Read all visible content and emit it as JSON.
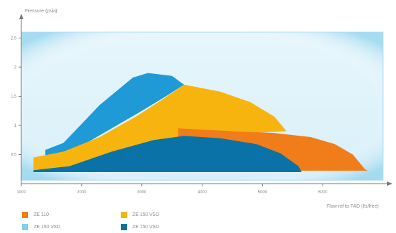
{
  "chart_data": {
    "type": "area",
    "title": "",
    "ylabel": "Pressure (psia)",
    "xlabel": "Flow ref to FAD (l/s/free)",
    "xlim": [
      1000,
      7000
    ],
    "ylim": [
      0,
      2.6
    ],
    "xticks": [
      "1000",
      "2000",
      "3000",
      "4000",
      "5000",
      "6000"
    ],
    "yticks": [
      "0.5",
      "1",
      "1.5",
      "2",
      "2.5"
    ],
    "series": [
      {
        "name": "ZE 150 VSD",
        "color": "#1f9ad6",
        "polygon": [
          [
            1400,
            0.58
          ],
          [
            1700,
            0.7
          ],
          [
            2300,
            1.35
          ],
          [
            2850,
            1.82
          ],
          [
            3100,
            1.9
          ],
          [
            3500,
            1.85
          ],
          [
            3700,
            1.7
          ],
          [
            3400,
            1.5
          ],
          [
            3000,
            1.25
          ],
          [
            2500,
            0.95
          ],
          [
            2000,
            0.65
          ],
          [
            1550,
            0.45
          ],
          [
            1400,
            0.42
          ]
        ]
      },
      {
        "name": "ZE 150 VSD",
        "color": "#f7b40f",
        "polygon": [
          [
            1200,
            0.45
          ],
          [
            1700,
            0.55
          ],
          [
            2300,
            0.8
          ],
          [
            2900,
            1.15
          ],
          [
            3350,
            1.45
          ],
          [
            3700,
            1.7
          ],
          [
            4300,
            1.58
          ],
          [
            4800,
            1.4
          ],
          [
            5200,
            1.15
          ],
          [
            5400,
            0.9
          ],
          [
            4400,
            0.85
          ],
          [
            3600,
            0.8
          ],
          [
            2900,
            0.55
          ],
          [
            2200,
            0.38
          ],
          [
            1600,
            0.25
          ],
          [
            1200,
            0.22
          ]
        ]
      },
      {
        "name": "ZE 110",
        "color": "#f07c1a",
        "polygon": [
          [
            3600,
            0.95
          ],
          [
            4500,
            0.9
          ],
          [
            5200,
            0.87
          ],
          [
            5800,
            0.8
          ],
          [
            6200,
            0.68
          ],
          [
            6500,
            0.5
          ],
          [
            6700,
            0.25
          ],
          [
            6750,
            0.22
          ],
          [
            3700,
            0.22
          ],
          [
            3600,
            0.7
          ]
        ]
      },
      {
        "name": "ZE 150 VSD",
        "color": "#0b72a8",
        "polygon": [
          [
            1200,
            0.23
          ],
          [
            1800,
            0.3
          ],
          [
            2500,
            0.55
          ],
          [
            3200,
            0.75
          ],
          [
            3700,
            0.82
          ],
          [
            4300,
            0.78
          ],
          [
            4900,
            0.68
          ],
          [
            5300,
            0.52
          ],
          [
            5600,
            0.3
          ],
          [
            5650,
            0.2
          ],
          [
            1200,
            0.2
          ]
        ]
      }
    ]
  },
  "legend": [
    {
      "label": "ZE 110",
      "color": "#f07c1a"
    },
    {
      "label": "ZE 150 VSD",
      "color": "#f7b40f"
    },
    {
      "label": "ZE 150 VSD",
      "color": "#7dd0f0"
    },
    {
      "label": "ZE 150 VSD",
      "color": "#0b72a8"
    }
  ]
}
